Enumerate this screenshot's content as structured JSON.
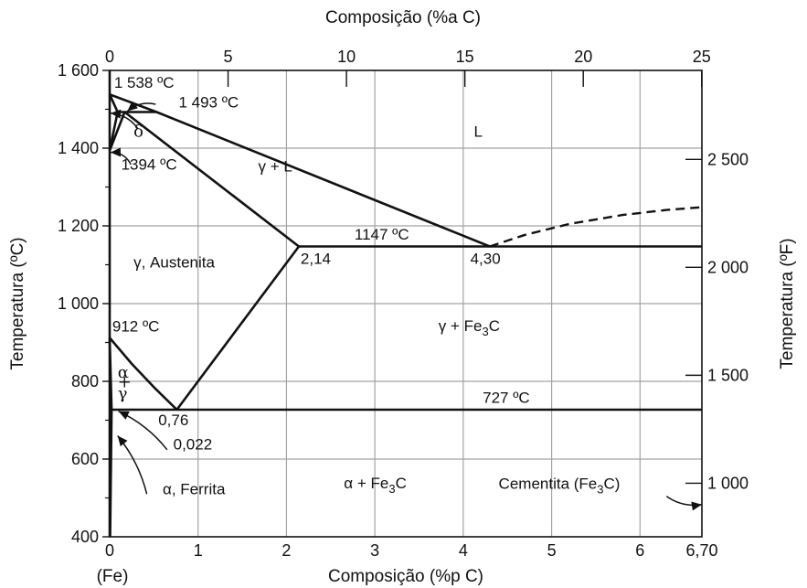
{
  "diagram": {
    "top_axis": {
      "title": "Composição (%a C)",
      "ticks": [
        {
          "value": 0,
          "label": "0"
        },
        {
          "value": 5,
          "label": "5"
        },
        {
          "value": 10,
          "label": "10"
        },
        {
          "value": 15,
          "label": "15"
        },
        {
          "value": 20,
          "label": "20"
        },
        {
          "value": 25,
          "label": "25"
        }
      ]
    },
    "bottom_axis": {
      "title": "Composição (%p C)",
      "origin_note": "(Fe)",
      "range": [
        0,
        6.7
      ],
      "ticks": [
        {
          "value": 0,
          "label": "0"
        },
        {
          "value": 1,
          "label": "1"
        },
        {
          "value": 2,
          "label": "2"
        },
        {
          "value": 3,
          "label": "3"
        },
        {
          "value": 4,
          "label": "4"
        },
        {
          "value": 5,
          "label": "5"
        },
        {
          "value": 6,
          "label": "6"
        },
        {
          "value": 6.7,
          "label": "6,70"
        }
      ]
    },
    "left_axis": {
      "title": "Temperatura (ºC)",
      "range": [
        400,
        1600
      ],
      "ticks": [
        {
          "value": 400,
          "label": "400"
        },
        {
          "value": 600,
          "label": "600"
        },
        {
          "value": 800,
          "label": "800"
        },
        {
          "value": 1000,
          "label": "1 000"
        },
        {
          "value": 1200,
          "label": "1 200"
        },
        {
          "value": 1400,
          "label": "1 400"
        },
        {
          "value": 1600,
          "label": "1 600"
        }
      ]
    },
    "right_axis": {
      "title": "Temperatura (ºF)",
      "ticks": [
        {
          "value_c": 537.8,
          "label": "1 000"
        },
        {
          "value_c": 815.6,
          "label": "1 500"
        },
        {
          "value_c": 1093.3,
          "label": "2 000"
        },
        {
          "value_c": 1371.1,
          "label": "2 500"
        }
      ]
    },
    "phase_lines": [
      {
        "points": [
          [
            0,
            1538
          ],
          [
            0.09,
            1493
          ]
        ]
      },
      {
        "points": [
          [
            0,
            1538
          ],
          [
            0.53,
            1493
          ],
          [
            4.3,
            1147
          ]
        ]
      },
      {
        "points": [
          [
            0,
            1394
          ],
          [
            0.09,
            1493
          ]
        ]
      },
      {
        "points": [
          [
            0,
            1394
          ],
          [
            0.17,
            1493
          ]
        ]
      },
      {
        "points": [
          [
            0.09,
            1493
          ],
          [
            0.53,
            1493
          ]
        ]
      },
      {
        "points": [
          [
            0.17,
            1493
          ],
          [
            2.14,
            1147
          ]
        ]
      },
      {
        "points": [
          [
            2.14,
            1147
          ],
          [
            6.7,
            1147
          ]
        ]
      },
      {
        "points": [
          [
            2.14,
            1147
          ],
          [
            0.76,
            727
          ]
        ]
      },
      {
        "points": [
          [
            0,
            912
          ],
          [
            0.25,
            845
          ],
          [
            0.5,
            785
          ],
          [
            0.76,
            727
          ]
        ]
      },
      {
        "points": [
          [
            0,
            912
          ],
          [
            0.022,
            727
          ],
          [
            0.005,
            400
          ]
        ]
      },
      {
        "points": [
          [
            0,
            400
          ],
          [
            0,
            1600
          ]
        ]
      },
      {
        "points": [
          [
            0.022,
            727
          ],
          [
            6.7,
            727
          ]
        ]
      }
    ],
    "dashed_lines": [
      {
        "points": [
          [
            4.3,
            1147
          ],
          [
            4.7,
            1177
          ],
          [
            5.2,
            1205
          ],
          [
            5.8,
            1228
          ],
          [
            6.3,
            1241
          ],
          [
            6.7,
            1248
          ]
        ]
      }
    ],
    "labels": [
      {
        "text": "1 538 ºC",
        "x": 0.05,
        "y": 1555
      },
      {
        "text": "1 493 ºC",
        "x": 0.78,
        "y": 1505
      },
      {
        "text": "1394 ºC",
        "x": 0.13,
        "y": 1345
      },
      {
        "text": "L",
        "x": 4.12,
        "y": 1430
      },
      {
        "text": "γ + L",
        "x": 1.68,
        "y": 1340
      },
      {
        "text": "1147 ºC",
        "x": 2.77,
        "y": 1165
      },
      {
        "text": "2,14",
        "x": 2.16,
        "y": 1102
      },
      {
        "text": "4,30",
        "x": 4.08,
        "y": 1102
      },
      {
        "text": "γ, Austenita",
        "x": 0.27,
        "y": 1093
      },
      {
        "text": "912 ºC",
        "x": 0.03,
        "y": 928
      },
      {
        "text": "γ + Fe",
        "sub": "3",
        "after": "C",
        "x": 3.72,
        "y": 930
      },
      {
        "text": "0,76",
        "x": 0.55,
        "y": 687
      },
      {
        "text": "727 ºC",
        "x": 4.22,
        "y": 745
      },
      {
        "text": "0,022",
        "x": 0.72,
        "y": 625
      },
      {
        "text": "α + Fe",
        "sub": "3",
        "after": "C",
        "x": 2.65,
        "y": 525
      },
      {
        "text": "Cementita (Fe",
        "sub": "3",
        "after": "C)",
        "x": 4.4,
        "y": 523
      },
      {
        "text": "α, Ferrita",
        "x": 0.6,
        "y": 510
      }
    ],
    "greek_labels": [
      {
        "text": "δ",
        "x": 0.27,
        "y": 1430
      },
      {
        "text": "α",
        "x": 0.09,
        "y": 810
      },
      {
        "text": "+",
        "x": 0.09,
        "y": 785
      },
      {
        "text": "γ",
        "x": 0.09,
        "y": 755
      }
    ],
    "arrows": [
      {
        "from": [
          0.52,
          1513
        ],
        "to": [
          0.2,
          1495
        ]
      },
      {
        "from": [
          0.32,
          1450
        ],
        "to": [
          0.01,
          1490
        ]
      },
      {
        "from": [
          0.24,
          1358
        ],
        "to": [
          0.01,
          1389
        ]
      },
      {
        "from": [
          0.65,
          624
        ],
        "to": [
          0.1,
          723
        ]
      },
      {
        "from": [
          0.42,
          510
        ],
        "to": [
          0.09,
          660
        ]
      },
      {
        "from": [
          6.3,
          504
        ],
        "to": [
          6.7,
          483
        ]
      }
    ]
  }
}
